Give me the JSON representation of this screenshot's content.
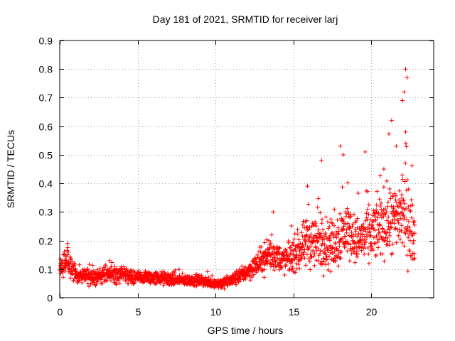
{
  "chart_data": {
    "type": "scatter",
    "title": "Day 181 of 2021, SRMTID for receiver larj",
    "xlabel": "GPS time / hours",
    "ylabel": "SRMTID / TECUs",
    "xlim": [
      0,
      24
    ],
    "ylim": [
      0,
      0.9
    ],
    "xticks": [
      0,
      5,
      10,
      15,
      20
    ],
    "yticks": [
      0,
      0.1,
      0.2,
      0.3,
      0.4,
      0.5,
      0.6,
      0.7,
      0.8,
      0.9
    ],
    "xtick_labels": [
      "0",
      "5",
      "10",
      "15",
      "20"
    ],
    "ytick_labels": [
      "0",
      "0.1",
      "0.2",
      "0.3",
      "0.4",
      "0.5",
      "0.6",
      "0.7",
      "0.8",
      "0.9"
    ],
    "grid": true,
    "marker": "+",
    "series": [
      {
        "name": "SRMTID",
        "color": "#ff0000",
        "data_description": "dense scatter of points sampled along an approximate envelope",
        "envelope": {
          "x": [
            0.0,
            0.3,
            0.5,
            1.0,
            2.0,
            3.0,
            4.0,
            5.0,
            6.0,
            7.0,
            8.0,
            9.0,
            10.0,
            10.5,
            11.0,
            12.0,
            12.5,
            13.0,
            13.5,
            14.0,
            14.5,
            15.0,
            15.5,
            16.0,
            16.5,
            17.0,
            17.5,
            18.0,
            18.5,
            19.0,
            19.5,
            20.0,
            20.5,
            21.0,
            21.5,
            22.0,
            22.3,
            22.8
          ],
          "mean": [
            0.1,
            0.12,
            0.13,
            0.08,
            0.07,
            0.08,
            0.08,
            0.07,
            0.07,
            0.065,
            0.06,
            0.06,
            0.05,
            0.05,
            0.06,
            0.09,
            0.11,
            0.13,
            0.15,
            0.14,
            0.13,
            0.15,
            0.17,
            0.2,
            0.19,
            0.2,
            0.18,
            0.22,
            0.24,
            0.2,
            0.21,
            0.22,
            0.25,
            0.27,
            0.26,
            0.3,
            0.28,
            0.2
          ],
          "spread": [
            0.04,
            0.04,
            0.05,
            0.03,
            0.025,
            0.03,
            0.03,
            0.025,
            0.025,
            0.025,
            0.02,
            0.02,
            0.02,
            0.02,
            0.025,
            0.03,
            0.04,
            0.05,
            0.06,
            0.05,
            0.05,
            0.06,
            0.08,
            0.1,
            0.1,
            0.1,
            0.09,
            0.11,
            0.1,
            0.08,
            0.09,
            0.1,
            0.11,
            0.13,
            0.13,
            0.16,
            0.17,
            0.08
          ]
        },
        "spikes": [
          {
            "x": 0.5,
            "y": 0.19
          },
          {
            "x": 13.7,
            "y": 0.3
          },
          {
            "x": 15.9,
            "y": 0.39
          },
          {
            "x": 16.8,
            "y": 0.48
          },
          {
            "x": 18.0,
            "y": 0.53
          },
          {
            "x": 18.2,
            "y": 0.5
          },
          {
            "x": 19.6,
            "y": 0.51
          },
          {
            "x": 20.8,
            "y": 0.45
          },
          {
            "x": 21.3,
            "y": 0.62
          },
          {
            "x": 21.6,
            "y": 0.53
          },
          {
            "x": 22.0,
            "y": 0.69
          },
          {
            "x": 22.1,
            "y": 0.72
          },
          {
            "x": 22.2,
            "y": 0.8
          },
          {
            "x": 22.3,
            "y": 0.77
          },
          {
            "x": 22.2,
            "y": 0.58
          }
        ]
      }
    ]
  }
}
